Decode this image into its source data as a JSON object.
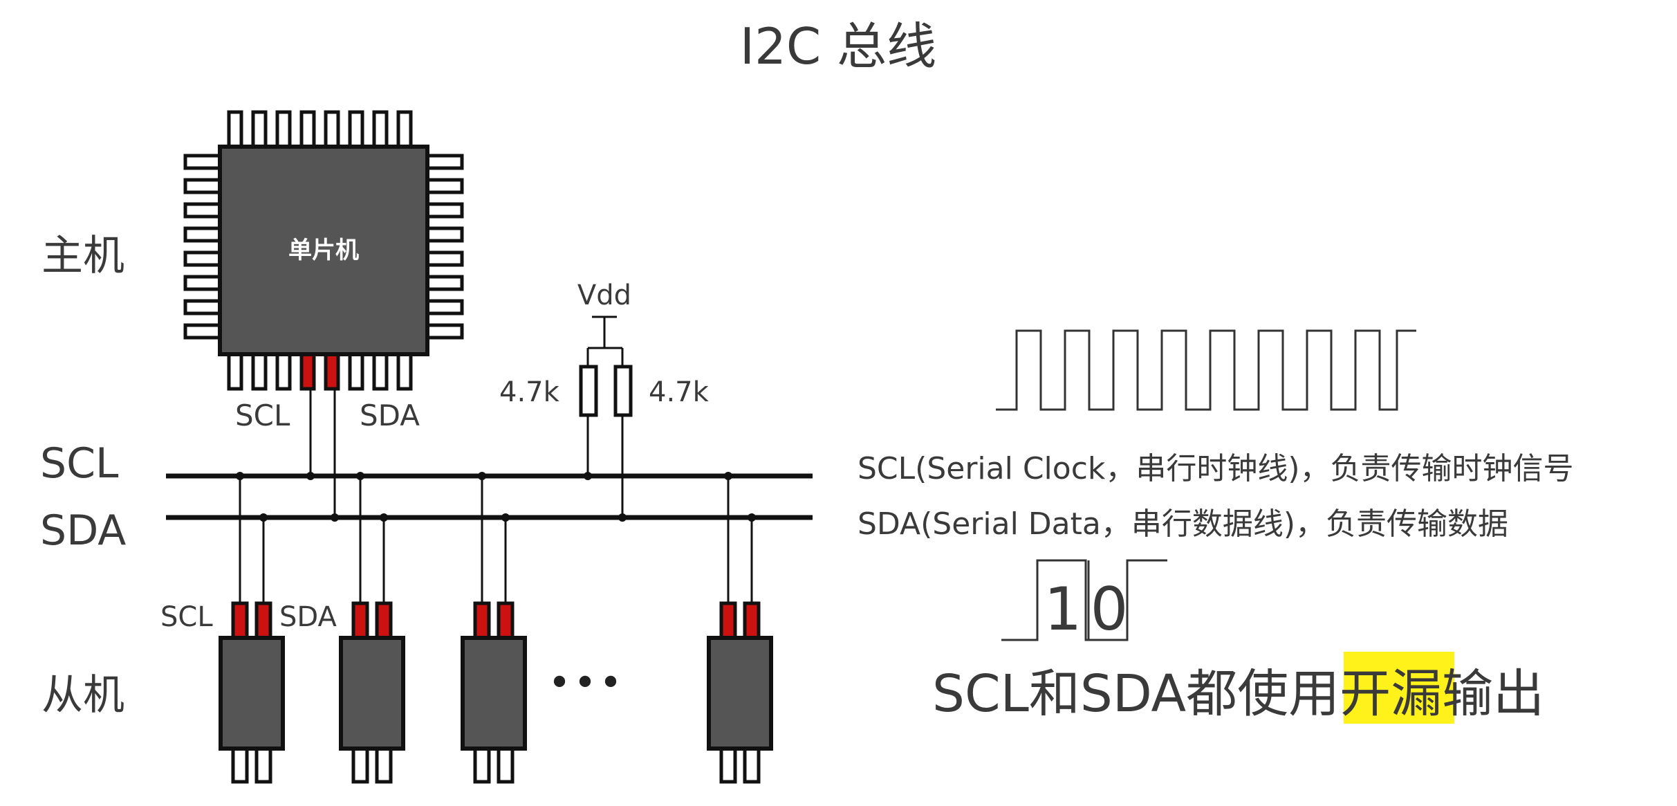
{
  "title": "I2C 总线",
  "labels": {
    "master": "主机",
    "slave": "从机",
    "chip": "单片机",
    "master_scl": "SCL",
    "master_sda": "SDA",
    "bus_scl": "SCL",
    "bus_sda": "SDA",
    "slave_scl": "SCL",
    "slave_sda": "SDA",
    "vdd": "Vdd",
    "res_left": "4.7k",
    "res_right": "4.7k",
    "ellipsis": "•••"
  },
  "descriptions": {
    "scl": "SCL(Serial Clock，串行时钟线)，负责传输时钟信号",
    "sda": "SDA(Serial Data，串行数据线)，负责传输数据"
  },
  "signal": {
    "bit_one": "1",
    "bit_zero": "0"
  },
  "conclusion": {
    "before": "SCL和SDA都使用",
    "highlight": "开漏",
    "after": "输出",
    "highlight_color": "#fff21a"
  },
  "colors": {
    "chip": "#555555",
    "active_pin": "#cc1111",
    "wire": "#111111"
  }
}
